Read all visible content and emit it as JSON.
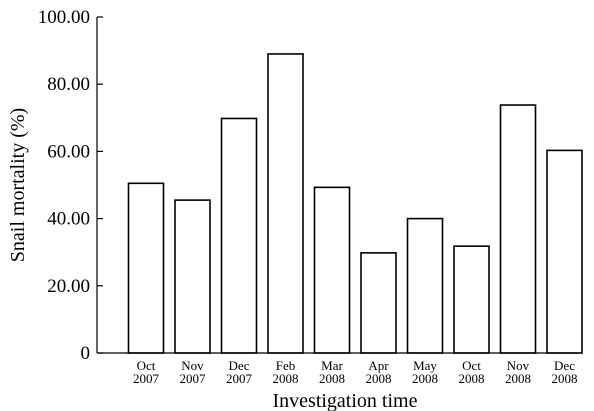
{
  "chart_data": {
    "type": "bar",
    "categories": [
      [
        "Oct",
        "2007"
      ],
      [
        "Nov",
        "2007"
      ],
      [
        "Dec",
        "2007"
      ],
      [
        "Feb",
        "2008"
      ],
      [
        "Mar",
        "2008"
      ],
      [
        "Apr",
        "2008"
      ],
      [
        "May",
        "2008"
      ],
      [
        "Oct",
        "2008"
      ],
      [
        "Nov",
        "2008"
      ],
      [
        "Dec",
        "2008"
      ]
    ],
    "values": [
      50.5,
      45.5,
      69.8,
      89.0,
      49.3,
      29.8,
      40.0,
      31.8,
      73.8,
      60.3
    ],
    "xlabel": "Investigation time",
    "ylabel": "Snail mortality (%)",
    "ylim": [
      0,
      100
    ],
    "yticks": [
      "0",
      "20.00",
      "40.00",
      "60.00",
      "80.00",
      "100.00"
    ],
    "bar_fill": "#ffffff",
    "bar_stroke": "#000000",
    "grid": false,
    "legend": "none"
  }
}
